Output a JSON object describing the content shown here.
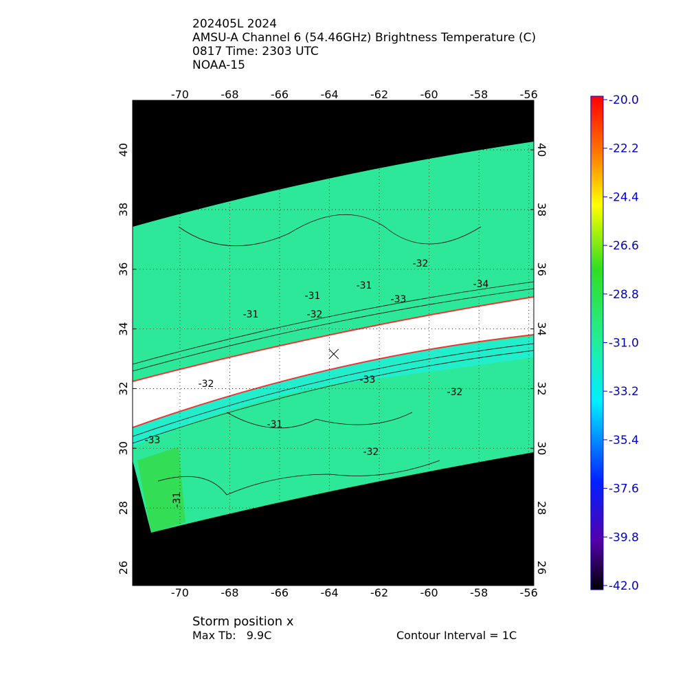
{
  "header": {
    "lines": [
      "202405L 2024",
      "AMSU-A Channel 6 (54.46GHz) Brightness Temperature (C)",
      "0817 Time: 2303 UTC",
      "NOAA-15"
    ]
  },
  "map": {
    "lonlim": [
      -71.9,
      -55.8
    ],
    "latlim": [
      25.4,
      41.66
    ],
    "lon_ticks": [
      -70,
      -68,
      -66,
      -64,
      -62,
      -60,
      -58,
      -56
    ],
    "lat_ticks": [
      26,
      28,
      30,
      32,
      34,
      36,
      38,
      40
    ],
    "grid": true,
    "storm": {
      "lon": -63.83,
      "lat": 33.16
    },
    "contour_labels": [
      "-31",
      "-31",
      "-32",
      "-31",
      "-32",
      "-33",
      "-34",
      "-32",
      "-33",
      "-32",
      "-31",
      "-32",
      "-33",
      "-31"
    ]
  },
  "colorbar": {
    "lim": [
      -42,
      -20
    ],
    "ticks": [
      {
        "value": -20,
        "label": "-20.0"
      },
      -22.2,
      -24.4,
      -26.6,
      -28.8,
      {
        "value": -31,
        "label": "-31.0"
      },
      -33.2,
      -35.4,
      -37.6,
      -39.8,
      {
        "value": -42,
        "label": "-42.0"
      }
    ]
  },
  "footer": {
    "storm_position": "Storm position x",
    "max_tb": "Max Tb:   9.9C",
    "contour_interval": "Contour Interval = 1C"
  }
}
